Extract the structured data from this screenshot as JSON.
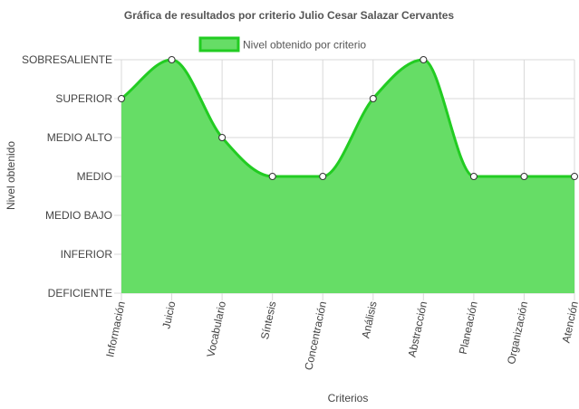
{
  "colors": {
    "fill": "#66dd66",
    "line": "#22cc22",
    "grid": "#d9d9d9",
    "point_fill": "#ffffff",
    "point_stroke": "#333333"
  },
  "chart_data": {
    "type": "area",
    "title": "Gráfica de resultados por criterio Julio Cesar Salazar Cervantes",
    "xlabel": "Criterios",
    "ylabel": "Nivel obtenido",
    "legend_position": "top",
    "grid": true,
    "y_levels": [
      "DEFICIENTE",
      "INFERIOR",
      "MEDIO BAJO",
      "MEDIO",
      "MEDIO ALTO",
      "SUPERIOR",
      "SOBRESALIENTE"
    ],
    "categories": [
      "Información",
      "Juicio",
      "Vocabulario",
      "Síntesis",
      "Concentración",
      "Análisis",
      "Abstracción",
      "Planeación",
      "Organización",
      "Atención"
    ],
    "series": [
      {
        "name": "Nivel obtenido por criterio",
        "values": [
          "SUPERIOR",
          "SOBRESALIENTE",
          "MEDIO ALTO",
          "MEDIO",
          "MEDIO",
          "SUPERIOR",
          "SOBRESALIENTE",
          "MEDIO",
          "MEDIO",
          "MEDIO"
        ]
      }
    ]
  }
}
